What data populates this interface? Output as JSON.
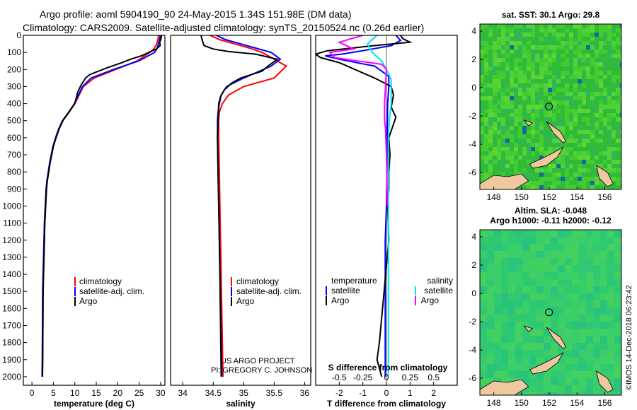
{
  "header": {
    "line1": "Argo profile: aoml 5904190_90 24-May-2015 1.34S 151.98E (DM data)",
    "line2": "Climatology: CARS2009. Satellite-adjusted climatology: synTS_20150524.nc (0.26d earlier)"
  },
  "credit": {
    "project": "US ARGO PROJECT",
    "pi": "PI: GREGORY C. JOHNSON",
    "imos": "©IMOS 14-Dec-2018 06:23:42"
  },
  "colors": {
    "climatology": "#ff0000",
    "satellite": "#0000ff",
    "argo": "#000000",
    "sat_salinity": "#00e5ee",
    "argo_salinity": "#ff00ff",
    "land": "#f0c8a0",
    "sst_field": "#39c832",
    "sla_field": "#33cc66"
  },
  "chart_data": [
    {
      "type": "line",
      "xlabel": "temperature (deg C)",
      "xlim": [
        -2,
        31
      ],
      "xticks": [
        0,
        5,
        10,
        15,
        20,
        25,
        30
      ],
      "ylim": [
        2050,
        0
      ],
      "yticks": [
        0,
        100,
        200,
        300,
        400,
        500,
        600,
        700,
        800,
        900,
        1000,
        1100,
        1200,
        1300,
        1400,
        1500,
        1600,
        1700,
        1800,
        1900,
        2000
      ],
      "legend": [
        "climatology",
        "satellite-adj. clim.",
        "Argo"
      ],
      "series": [
        {
          "name": "climatology",
          "color": "#ff0000",
          "x": [
            29.5,
            29.4,
            29.1,
            28.4,
            27.5,
            24.5,
            19.5,
            14.5,
            12.0,
            11.0,
            10.0,
            8.7,
            7.2,
            6.3,
            5.6,
            5.0,
            4.6,
            4.2,
            3.9,
            3.6,
            3.4,
            3.2,
            3.0,
            2.9,
            2.8,
            2.7,
            2.6,
            2.55,
            2.5,
            2.45
          ],
          "y": [
            0,
            20,
            50,
            80,
            100,
            150,
            200,
            250,
            300,
            350,
            400,
            450,
            500,
            550,
            600,
            650,
            700,
            750,
            800,
            850,
            900,
            1000,
            1100,
            1200,
            1300,
            1400,
            1500,
            1700,
            1900,
            2000
          ]
        },
        {
          "name": "satellite-adj. clim.",
          "color": "#0000ff",
          "x": [
            29.9,
            29.8,
            29.5,
            29.1,
            28.6,
            24.9,
            19.0,
            13.8,
            11.8,
            10.8,
            9.9,
            8.6,
            7.1,
            6.2,
            5.5,
            4.9,
            4.5,
            4.1,
            3.8,
            3.5,
            3.3,
            3.1,
            2.9,
            2.8,
            2.7,
            2.6,
            2.5,
            2.45,
            2.4,
            2.35
          ],
          "y": [
            0,
            20,
            50,
            80,
            100,
            150,
            200,
            250,
            300,
            350,
            400,
            450,
            500,
            550,
            600,
            650,
            700,
            750,
            800,
            850,
            900,
            1000,
            1100,
            1200,
            1300,
            1400,
            1500,
            1700,
            1900,
            2000
          ]
        },
        {
          "name": "Argo",
          "color": "#000000",
          "x": [
            30.2,
            30.1,
            29.8,
            29.9,
            29.0,
            25.5,
            23.0,
            21.0,
            17.5,
            13.5,
            12.5,
            11.5,
            10.7,
            10.0,
            8.6,
            7.2,
            6.3,
            5.6,
            5.0,
            4.6,
            4.2,
            3.9,
            3.6,
            3.4,
            3.2,
            3.0,
            2.9,
            2.8,
            2.7,
            2.6,
            2.55,
            2.5,
            2.45
          ],
          "y": [
            0,
            20,
            40,
            60,
            80,
            120,
            140,
            160,
            190,
            230,
            250,
            290,
            330,
            400,
            450,
            500,
            550,
            600,
            650,
            700,
            750,
            800,
            850,
            900,
            1000,
            1100,
            1200,
            1300,
            1400,
            1500,
            1700,
            1900,
            2000
          ]
        }
      ]
    },
    {
      "type": "line",
      "xlabel": "salinity",
      "xlim": [
        33.8,
        36.1
      ],
      "xticks": [
        34,
        34.5,
        35,
        35.5,
        36
      ],
      "ylim": [
        2050,
        0
      ],
      "legend": [
        "climatology",
        "satellite-adj. clim.",
        "Argo"
      ],
      "series": [
        {
          "name": "climatology",
          "color": "#ff0000",
          "x": [
            34.45,
            34.6,
            34.85,
            35.1,
            35.3,
            35.55,
            35.7,
            35.5,
            35.0,
            34.75,
            34.65,
            34.6,
            34.59,
            34.59,
            34.6,
            34.61,
            34.62,
            34.63,
            34.64,
            34.65,
            34.66
          ],
          "y": [
            0,
            25,
            50,
            75,
            100,
            150,
            180,
            250,
            300,
            350,
            400,
            450,
            500,
            600,
            800,
            1000,
            1200,
            1400,
            1600,
            1800,
            2000
          ]
        },
        {
          "name": "satellite-adj. clim.",
          "color": "#0000ff",
          "x": [
            34.55,
            34.7,
            34.95,
            35.2,
            35.45,
            35.6,
            35.45,
            35.0,
            34.72,
            34.63,
            34.6,
            34.58,
            34.57,
            34.57,
            34.58,
            34.59,
            34.6,
            34.61,
            34.62,
            34.63,
            34.64
          ],
          "y": [
            0,
            25,
            50,
            75,
            100,
            140,
            180,
            250,
            300,
            350,
            400,
            450,
            500,
            600,
            800,
            1000,
            1200,
            1400,
            1600,
            1800,
            2000
          ]
        },
        {
          "name": "Argo",
          "color": "#000000",
          "x": [
            34.3,
            34.32,
            34.35,
            34.5,
            34.75,
            35.2,
            35.55,
            35.4,
            35.3,
            34.95,
            34.8,
            34.68,
            34.62,
            34.59,
            34.58,
            34.57,
            34.58,
            34.59,
            34.6,
            34.61,
            34.62,
            34.63
          ],
          "y": [
            0,
            30,
            60,
            80,
            95,
            110,
            140,
            180,
            210,
            250,
            280,
            320,
            360,
            400,
            500,
            600,
            800,
            1000,
            1200,
            1400,
            1700,
            2000
          ]
        }
      ]
    },
    {
      "type": "line",
      "xlabel": "T difference from climatology",
      "xlabel_top": "S difference from climatology",
      "xlim_T": [
        -3,
        3
      ],
      "xticks_T": [
        -2,
        -1,
        0,
        1,
        2
      ],
      "xticks_S": [
        -0.5,
        -0.25,
        0,
        0.25,
        0.5
      ],
      "xlim_S": [
        -0.75,
        0.75
      ],
      "ylim": [
        2050,
        0
      ],
      "legend_left_title": "temperature",
      "legend_right_title": "salinity",
      "legend": [
        "satellite",
        "Argo",
        "satellite",
        "Argo"
      ],
      "series": [
        {
          "name": "satellite",
          "quantity": "temperature",
          "color": "#0000ff",
          "x": [
            0.4,
            0.6,
            0.2,
            -1.0,
            -1.9,
            -2.6,
            -2.0,
            -0.5,
            0.1,
            0.1,
            0.05,
            0.03,
            0.02,
            0.0,
            -0.05,
            -0.05,
            -0.05,
            -0.05,
            -0.05,
            -0.05
          ],
          "y": [
            0,
            30,
            60,
            90,
            110,
            120,
            140,
            180,
            240,
            300,
            400,
            600,
            800,
            1000,
            1200,
            1400,
            1600,
            1700,
            1900,
            2000
          ]
        },
        {
          "name": "Argo",
          "quantity": "temperature",
          "color": "#000000",
          "x": [
            0.6,
            0.7,
            1.0,
            -0.5,
            -2.5,
            -3.0,
            -2.8,
            -2.0,
            -0.5,
            0.2,
            0.3,
            0.2,
            0.4,
            0.3,
            0.2,
            0.1,
            0.15,
            0.1,
            0.1,
            0.05,
            0.1,
            -0.1,
            -0.3,
            -0.4,
            -0.2
          ],
          "y": [
            0,
            20,
            40,
            60,
            90,
            110,
            130,
            160,
            250,
            300,
            350,
            420,
            480,
            520,
            560,
            600,
            700,
            800,
            900,
            1000,
            1200,
            1500,
            1800,
            1900,
            2000
          ]
        },
        {
          "name": "satellite",
          "quantity": "salinity",
          "color": "#00e5ee",
          "x": [
            -0.1,
            -0.2,
            -0.15,
            -0.05,
            0.0,
            0.05,
            0.05,
            0.05,
            0.03,
            0.02,
            0.02,
            0.02,
            0.02,
            0.02,
            0.02
          ],
          "y": [
            0,
            50,
            100,
            150,
            200,
            260,
            320,
            400,
            500,
            600,
            800,
            1000,
            1200,
            1600,
            2000
          ]
        },
        {
          "name": "Argo",
          "quantity": "salinity",
          "color": "#ff00ff",
          "x": [
            -0.25,
            -0.5,
            -0.35,
            -0.6,
            -0.55,
            -0.3,
            -0.05,
            0.0,
            -0.02,
            -0.02,
            -0.01,
            0.0,
            0.01
          ],
          "y": [
            0,
            40,
            80,
            100,
            130,
            150,
            170,
            200,
            400,
            500,
            550,
            700,
            1000
          ]
        }
      ]
    },
    {
      "type": "heatmap",
      "title": "sat. SST: 30.1  Argo: 29.8",
      "xticks": [
        148,
        150,
        152,
        154,
        156
      ],
      "yticks": [
        4,
        2,
        0,
        -2,
        -4,
        -6
      ],
      "xlim": [
        147,
        157.2
      ],
      "ylim": [
        -7.2,
        4.5
      ],
      "argo_position": {
        "lon": 151.98,
        "lat": -1.34
      }
    },
    {
      "type": "heatmap",
      "title_line1": "Altim. SLA: -0.048",
      "title_line2": "Argo h1000: -0.11 h2000: -0.12",
      "xticks": [
        148,
        150,
        152,
        154,
        156
      ],
      "yticks": [
        4,
        2,
        0,
        -2,
        -4,
        -6
      ],
      "xlim": [
        147,
        157.2
      ],
      "ylim": [
        -7.2,
        4.5
      ],
      "argo_position": {
        "lon": 151.98,
        "lat": -1.34
      }
    }
  ]
}
